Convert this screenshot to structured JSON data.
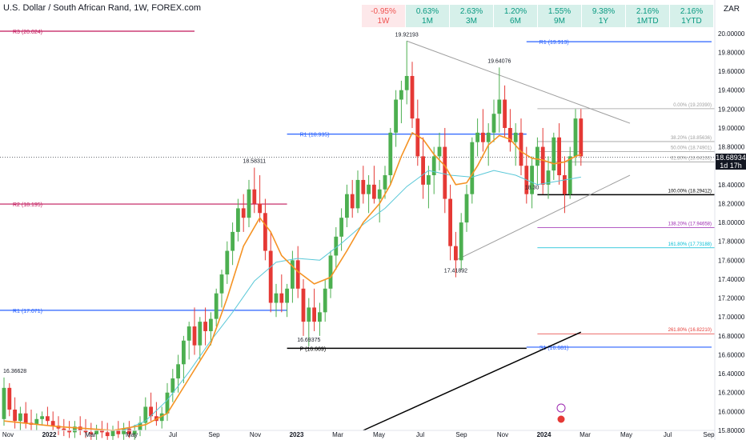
{
  "header": {
    "title": "U.S. Dollar / South African Rand, 1W, FOREX.com",
    "currency": "ZAR"
  },
  "performance": [
    {
      "value": "-0.95%",
      "period": "1W",
      "negative": true
    },
    {
      "value": "0.63%",
      "period": "1M",
      "negative": false
    },
    {
      "value": "2.63%",
      "period": "3M",
      "negative": false
    },
    {
      "value": "1.20%",
      "period": "6M",
      "negative": false
    },
    {
      "value": "1.55%",
      "period": "9M",
      "negative": false
    },
    {
      "value": "9.38%",
      "period": "1Y",
      "negative": false
    },
    {
      "value": "2.16%",
      "period": "1MTD",
      "negative": false
    },
    {
      "value": "2.16%",
      "period": "1YTD",
      "negative": false
    }
  ],
  "last_price": {
    "value": "18.68934",
    "countdown": "1d 17h"
  },
  "colors": {
    "up": "#26a69a",
    "down": "#ef5350",
    "candle_up": "#4caf50",
    "candle_down": "#e53935",
    "ema_fast": "#f59324",
    "ema_slow": "#5ac8d8",
    "pivot_r": "#2962ff",
    "pivot_r2": "#c2185b",
    "fib": "#9e9e9e",
    "trendline": "#000000"
  },
  "chart_data": {
    "type": "candlestick",
    "symbol": "USDZAR",
    "interval": "1W",
    "ylim": [
      15.8,
      20.1
    ],
    "y_ticks": [
      15.8,
      16.0,
      16.2,
      16.4,
      16.6,
      16.8,
      17.0,
      17.2,
      17.4,
      17.6,
      17.8,
      18.0,
      18.2,
      18.4,
      18.6,
      18.8,
      19.0,
      19.2,
      19.4,
      19.6,
      19.8,
      20.0
    ],
    "x_labels": [
      "Nov",
      "2022",
      "Mar",
      "May",
      "Jul",
      "Sep",
      "Nov",
      "2023",
      "Mar",
      "May",
      "Jul",
      "Sep",
      "Nov",
      "2024",
      "Mar",
      "May",
      "Jul",
      "Sep"
    ],
    "candles": [
      [
        15.92,
        16.36,
        15.85,
        16.25
      ],
      [
        16.25,
        16.3,
        15.95,
        16.02
      ],
      [
        16.02,
        16.15,
        15.82,
        15.9
      ],
      [
        15.9,
        16.05,
        15.8,
        15.98
      ],
      [
        15.98,
        16.1,
        15.82,
        15.88
      ],
      [
        15.88,
        16.02,
        15.8,
        15.86
      ],
      [
        15.86,
        15.98,
        15.8,
        15.92
      ],
      [
        15.92,
        16.0,
        15.85,
        15.95
      ],
      [
        15.95,
        16.05,
        15.85,
        15.9
      ],
      [
        15.9,
        16.0,
        15.8,
        15.85
      ],
      [
        15.85,
        15.95,
        15.75,
        15.82
      ],
      [
        15.82,
        15.92,
        15.74,
        15.8
      ],
      [
        15.8,
        15.9,
        15.72,
        15.78
      ],
      [
        15.78,
        15.9,
        15.72,
        15.84
      ],
      [
        15.84,
        15.95,
        15.75,
        15.8
      ],
      [
        15.8,
        15.92,
        15.72,
        15.78
      ],
      [
        15.78,
        15.88,
        15.7,
        15.76
      ],
      [
        15.76,
        15.86,
        15.7,
        15.8
      ],
      [
        15.8,
        15.9,
        15.72,
        15.78
      ],
      [
        15.78,
        15.88,
        15.7,
        15.74
      ],
      [
        15.74,
        15.85,
        15.7,
        15.8
      ],
      [
        15.8,
        15.9,
        15.72,
        15.76
      ],
      [
        15.76,
        15.88,
        15.7,
        15.82
      ],
      [
        15.82,
        15.9,
        15.72,
        15.76
      ],
      [
        15.76,
        15.86,
        15.7,
        15.8
      ],
      [
        15.8,
        15.95,
        15.74,
        15.88
      ],
      [
        15.88,
        16.15,
        15.8,
        16.05
      ],
      [
        16.05,
        16.2,
        15.9,
        15.95
      ],
      [
        15.95,
        16.1,
        15.85,
        15.9
      ],
      [
        15.9,
        16.05,
        15.82,
        15.98
      ],
      [
        15.98,
        16.3,
        15.9,
        16.2
      ],
      [
        16.2,
        16.45,
        16.1,
        16.35
      ],
      [
        16.35,
        16.6,
        16.2,
        16.5
      ],
      [
        16.5,
        16.8,
        16.3,
        16.75
      ],
      [
        16.75,
        16.95,
        16.55,
        16.9
      ],
      [
        16.9,
        17.1,
        16.6,
        16.7
      ],
      [
        16.7,
        17.0,
        16.55,
        16.95
      ],
      [
        16.95,
        17.1,
        16.7,
        16.85
      ],
      [
        16.85,
        17.05,
        16.7,
        16.98
      ],
      [
        16.98,
        17.3,
        16.9,
        17.25
      ],
      [
        17.25,
        17.5,
        17.1,
        17.45
      ],
      [
        17.45,
        17.8,
        17.35,
        17.7
      ],
      [
        17.7,
        18.0,
        17.55,
        17.9
      ],
      [
        17.9,
        18.25,
        17.8,
        18.15
      ],
      [
        18.15,
        18.3,
        17.9,
        18.05
      ],
      [
        18.05,
        18.45,
        17.95,
        18.35
      ],
      [
        18.35,
        18.58,
        18.1,
        18.2
      ],
      [
        18.2,
        18.5,
        18.0,
        18.1
      ],
      [
        18.1,
        18.25,
        17.6,
        17.7
      ],
      [
        17.7,
        17.9,
        17.05,
        17.15
      ],
      [
        17.15,
        17.35,
        17.0,
        17.25
      ],
      [
        17.25,
        17.45,
        17.05,
        17.15
      ],
      [
        17.15,
        17.35,
        17.0,
        17.3
      ],
      [
        17.3,
        17.7,
        17.15,
        17.6
      ],
      [
        17.6,
        17.75,
        17.2,
        17.3
      ],
      [
        17.3,
        17.4,
        16.8,
        16.95
      ],
      [
        16.95,
        17.2,
        16.69,
        17.1
      ],
      [
        17.1,
        17.3,
        16.85,
        16.95
      ],
      [
        16.95,
        17.15,
        16.8,
        17.05
      ],
      [
        17.05,
        17.4,
        16.95,
        17.3
      ],
      [
        17.3,
        17.7,
        17.2,
        17.65
      ],
      [
        17.65,
        17.95,
        17.5,
        17.85
      ],
      [
        17.85,
        18.15,
        17.7,
        18.05
      ],
      [
        18.05,
        18.4,
        17.95,
        18.3
      ],
      [
        18.3,
        18.45,
        18.05,
        18.15
      ],
      [
        18.15,
        18.55,
        18.1,
        18.45
      ],
      [
        18.45,
        18.6,
        18.2,
        18.3
      ],
      [
        18.3,
        18.5,
        18.1,
        18.4
      ],
      [
        18.4,
        18.6,
        18.2,
        18.25
      ],
      [
        18.25,
        18.45,
        18.0,
        18.35
      ],
      [
        18.35,
        18.6,
        18.25,
        18.5
      ],
      [
        18.5,
        19.0,
        18.4,
        18.95
      ],
      [
        18.95,
        19.4,
        18.8,
        19.3
      ],
      [
        19.3,
        19.5,
        19.05,
        19.4
      ],
      [
        19.4,
        19.92,
        19.25,
        19.55
      ],
      [
        19.55,
        19.7,
        19.0,
        19.1
      ],
      [
        19.1,
        19.3,
        18.6,
        18.7
      ],
      [
        18.7,
        18.9,
        18.25,
        18.4
      ],
      [
        18.4,
        18.6,
        18.15,
        18.5
      ],
      [
        18.5,
        18.8,
        18.3,
        18.7
      ],
      [
        18.7,
        18.95,
        18.55,
        18.8
      ],
      [
        18.8,
        19.0,
        18.1,
        18.25
      ],
      [
        18.25,
        18.4,
        17.6,
        17.75
      ],
      [
        17.75,
        17.9,
        17.42,
        17.6
      ],
      [
        17.6,
        18.1,
        17.5,
        18.0
      ],
      [
        18.0,
        18.4,
        17.9,
        18.3
      ],
      [
        18.3,
        18.9,
        18.2,
        18.85
      ],
      [
        18.85,
        19.1,
        18.7,
        18.95
      ],
      [
        18.95,
        19.2,
        18.75,
        18.85
      ],
      [
        18.85,
        19.05,
        18.6,
        18.95
      ],
      [
        18.95,
        19.3,
        18.85,
        19.15
      ],
      [
        19.15,
        19.64,
        18.95,
        19.3
      ],
      [
        19.3,
        19.45,
        18.9,
        19.0
      ],
      [
        19.0,
        19.2,
        18.75,
        18.85
      ],
      [
        18.85,
        19.05,
        18.6,
        18.95
      ],
      [
        18.95,
        19.1,
        18.5,
        18.6
      ],
      [
        18.6,
        18.8,
        18.2,
        18.3
      ],
      [
        18.3,
        18.7,
        18.15,
        18.6
      ],
      [
        18.6,
        18.9,
        18.4,
        18.8
      ],
      [
        18.8,
        19.0,
        18.3,
        18.4
      ],
      [
        18.4,
        18.7,
        18.25,
        18.55
      ],
      [
        18.55,
        18.95,
        18.45,
        18.9
      ],
      [
        18.9,
        19.05,
        18.4,
        18.5
      ],
      [
        18.5,
        18.7,
        18.1,
        18.3
      ],
      [
        18.3,
        18.8,
        18.25,
        18.7
      ],
      [
        18.7,
        19.2,
        18.6,
        19.1
      ],
      [
        19.1,
        19.2,
        18.6,
        18.7
      ]
    ],
    "ema_fast": [
      [
        0,
        15.9
      ],
      [
        10,
        15.84
      ],
      [
        20,
        15.8
      ],
      [
        26,
        15.86
      ],
      [
        30,
        15.98
      ],
      [
        34,
        16.35
      ],
      [
        38,
        16.72
      ],
      [
        41,
        17.2
      ],
      [
        44,
        17.75
      ],
      [
        47,
        18.05
      ],
      [
        49,
        17.9
      ],
      [
        51,
        17.65
      ],
      [
        54,
        17.48
      ],
      [
        57,
        17.35
      ],
      [
        60,
        17.42
      ],
      [
        63,
        17.7
      ],
      [
        66,
        18.0
      ],
      [
        69,
        18.2
      ],
      [
        71,
        18.4
      ],
      [
        73,
        18.7
      ],
      [
        75,
        18.95
      ],
      [
        77,
        18.88
      ],
      [
        79,
        18.72
      ],
      [
        81,
        18.6
      ],
      [
        83,
        18.4
      ],
      [
        85,
        18.42
      ],
      [
        87,
        18.6
      ],
      [
        89,
        18.82
      ],
      [
        91,
        18.92
      ],
      [
        93,
        18.88
      ],
      [
        95,
        18.75
      ],
      [
        97,
        18.68
      ],
      [
        99,
        18.66
      ],
      [
        101,
        18.62
      ],
      [
        103,
        18.64
      ],
      [
        105,
        18.7
      ],
      [
        106,
        18.72
      ]
    ],
    "ema_slow": [
      [
        22,
        15.8
      ],
      [
        26,
        15.9
      ],
      [
        30,
        16.12
      ],
      [
        34,
        16.42
      ],
      [
        38,
        16.75
      ],
      [
        42,
        17.05
      ],
      [
        46,
        17.38
      ],
      [
        50,
        17.58
      ],
      [
        54,
        17.62
      ],
      [
        58,
        17.6
      ],
      [
        62,
        17.78
      ],
      [
        66,
        17.98
      ],
      [
        70,
        18.15
      ],
      [
        74,
        18.38
      ],
      [
        78,
        18.55
      ],
      [
        82,
        18.5
      ],
      [
        86,
        18.48
      ],
      [
        90,
        18.55
      ],
      [
        94,
        18.5
      ],
      [
        98,
        18.4
      ],
      [
        102,
        18.44
      ],
      [
        106,
        18.48
      ]
    ],
    "levels": [
      {
        "label": "R3 (20.024)",
        "price": 20.024,
        "x0": 0,
        "x1": 35,
        "color_key": "pivot_r2"
      },
      {
        "label": "R1 (19.913)",
        "price": 19.913,
        "x0": 96,
        "x1": 130,
        "color_key": "pivot_r"
      },
      {
        "label": "R1 (18.935)",
        "price": 18.935,
        "x0": 52,
        "x1": 96,
        "color_key": "pivot_r"
      },
      {
        "label": "R2 (18.195)",
        "price": 18.195,
        "x0": 0,
        "x1": 52,
        "color_key": "pivot_r2"
      },
      {
        "label": "R1 (17.071)",
        "price": 17.071,
        "x0": 0,
        "x1": 52,
        "color_key": "pivot_r"
      },
      {
        "label": "P (16.669)",
        "price": 16.669,
        "x0": 52,
        "x1": 96,
        "color_key": "trendline"
      },
      {
        "label": "S1 (16.681)",
        "price": 16.681,
        "x0": 96,
        "x1": 130,
        "color_key": "pivot_r"
      }
    ],
    "fib": [
      {
        "label": "0.00% (19.20390)",
        "price": 19.2039
      },
      {
        "label": "38.20% (18.85636)",
        "price": 18.85636
      },
      {
        "label": "50.00% (18.74901)",
        "price": 18.74901
      },
      {
        "label": "61.80% (18.64166)",
        "price": 18.64166
      },
      {
        "label": "100.00% (18.29412)",
        "price": 18.29412
      },
      {
        "label": "138.20% (17.94658)",
        "price": 17.94658
      },
      {
        "label": "161.80% (17.73188)",
        "price": 17.73188
      },
      {
        "label": "261.80% (16.82210)",
        "price": 16.8221
      }
    ],
    "annotations": [
      {
        "text": "16.36628",
        "idx": 2,
        "price": 16.36
      },
      {
        "text": "18.58311",
        "idx": 46,
        "price": 18.58
      },
      {
        "text": "16.69375",
        "idx": 56,
        "price": 16.69
      },
      {
        "text": "19.92193",
        "idx": 74,
        "price": 19.92
      },
      {
        "text": "17.41892",
        "idx": 83,
        "price": 17.42
      },
      {
        "text": "19.64076",
        "idx": 91,
        "price": 19.64
      },
      {
        "text": "18.30",
        "idx": 97,
        "price": 18.3
      }
    ],
    "triangle": {
      "upper": [
        [
          74,
          19.92
        ],
        [
          115,
          19.05
        ]
      ],
      "lower": [
        [
          83,
          17.6
        ],
        [
          115,
          18.5
        ]
      ]
    },
    "long_trend": [
      [
        66,
        15.8
      ],
      [
        106,
        16.84
      ]
    ]
  }
}
